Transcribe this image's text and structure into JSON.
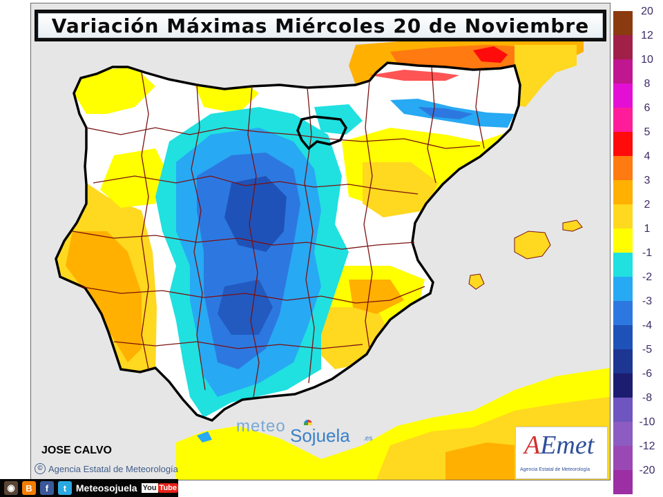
{
  "title": "Variación Máximas Miércoles 20 de Noviembre",
  "author": "JOSE CALVO",
  "credit": {
    "copyright_symbol": "©",
    "text": "Agencia Estatal de Meteorología"
  },
  "watermark": {
    "meteo": "meteo",
    "sojuela": "Sojuela",
    "tld": ".es"
  },
  "logo": {
    "main_a": "A",
    "main_rest": "Emet",
    "subtitle": "Agencia Estatal de Meteorología"
  },
  "legend": {
    "positive": [
      {
        "label": "20",
        "color": "#8b3a0f"
      },
      {
        "label": "12",
        "color": "#a0204a"
      },
      {
        "label": "10",
        "color": "#c0168f"
      },
      {
        "label": "8",
        "color": "#e40fd4"
      },
      {
        "label": "6",
        "color": "#ff1c9b"
      },
      {
        "label": "5",
        "color": "#ff0b0b"
      },
      {
        "label": "4",
        "color": "#ff7a10"
      },
      {
        "label": "3",
        "color": "#ffb000"
      },
      {
        "label": "2",
        "color": "#ffd820"
      },
      {
        "label": "1",
        "color": "#ffff00"
      }
    ],
    "negative": [
      {
        "label": "-1",
        "color": "#20e0e0"
      },
      {
        "label": "-2",
        "color": "#27a9f3"
      },
      {
        "label": "-3",
        "color": "#2d78e0"
      },
      {
        "label": "-4",
        "color": "#1f52b8"
      },
      {
        "label": "-5",
        "color": "#1c3692"
      },
      {
        "label": "-6",
        "color": "#1c1c70"
      },
      {
        "label": "-8",
        "color": "#6e55c0"
      },
      {
        "label": "-10",
        "color": "#8c5cc2"
      },
      {
        "label": "-12",
        "color": "#9a49b4"
      },
      {
        "label": "-20",
        "color": "#9b2fa3"
      }
    ]
  },
  "social": {
    "handle": "Meteosojuela",
    "youtube_a": "You",
    "youtube_b": "Tube"
  },
  "colors": {
    "sea": "#e6e6e6",
    "land_neutral": "#ffffff",
    "borders": "#7a1010"
  }
}
